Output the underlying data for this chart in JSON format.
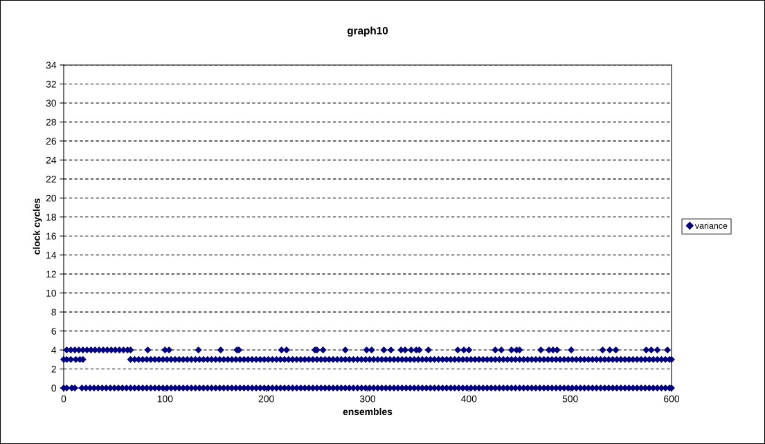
{
  "chart_data": {
    "type": "scatter",
    "title": "graph10",
    "xlabel": "ensembles",
    "ylabel": "clock cycles",
    "xlim": [
      0,
      600
    ],
    "xticks": [
      0,
      100,
      200,
      300,
      400,
      500,
      600
    ],
    "ylim": [
      0,
      34
    ],
    "yticks": [
      0,
      2,
      4,
      6,
      8,
      10,
      12,
      14,
      16,
      18,
      20,
      22,
      24,
      26,
      28,
      30,
      32,
      34
    ],
    "grid": "y",
    "legend": "right",
    "marker": "diamond",
    "series": [
      {
        "name": "variance",
        "color": "#000080",
        "x": [
          0,
          3,
          8,
          11,
          18,
          22,
          26,
          30,
          34,
          38,
          42,
          46,
          50,
          54,
          58,
          62,
          66,
          70,
          74,
          78,
          82,
          86,
          90,
          94,
          98,
          102,
          106,
          110,
          114,
          118,
          122,
          126,
          130,
          134,
          138,
          142,
          146,
          150,
          154,
          158,
          162,
          166,
          170,
          174,
          178,
          182,
          186,
          190,
          194,
          198,
          202,
          206,
          210,
          214,
          218,
          222,
          226,
          230,
          234,
          238,
          242,
          246,
          250,
          254,
          258,
          262,
          266,
          270,
          274,
          278,
          282,
          286,
          290,
          294,
          298,
          302,
          306,
          310,
          314,
          318,
          322,
          326,
          330,
          334,
          338,
          342,
          346,
          350,
          354,
          358,
          362,
          366,
          370,
          374,
          378,
          382,
          386,
          390,
          394,
          398,
          402,
          406,
          410,
          414,
          418,
          422,
          426,
          430,
          434,
          438,
          442,
          446,
          450,
          454,
          458,
          462,
          466,
          470,
          474,
          478,
          482,
          486,
          490,
          494,
          498,
          502,
          506,
          510,
          514,
          518,
          522,
          526,
          530,
          534,
          538,
          542,
          546,
          550,
          554,
          558,
          562,
          566,
          570,
          574,
          578,
          582,
          586,
          590,
          594,
          598,
          600,
          0,
          3,
          7,
          12,
          16,
          19,
          66,
          70,
          74,
          78,
          82,
          86,
          90,
          94,
          98,
          102,
          106,
          110,
          114,
          118,
          122,
          126,
          130,
          134,
          138,
          142,
          146,
          150,
          154,
          158,
          162,
          166,
          170,
          174,
          178,
          182,
          186,
          190,
          194,
          198,
          202,
          206,
          210,
          214,
          218,
          222,
          226,
          230,
          234,
          238,
          242,
          246,
          250,
          254,
          258,
          262,
          266,
          270,
          274,
          278,
          282,
          286,
          290,
          294,
          298,
          302,
          306,
          310,
          314,
          318,
          322,
          326,
          330,
          334,
          338,
          342,
          346,
          350,
          354,
          358,
          362,
          366,
          370,
          374,
          378,
          382,
          386,
          390,
          394,
          398,
          402,
          406,
          410,
          414,
          418,
          422,
          426,
          430,
          434,
          438,
          442,
          446,
          450,
          454,
          458,
          462,
          466,
          470,
          474,
          478,
          482,
          486,
          490,
          494,
          498,
          502,
          506,
          510,
          514,
          518,
          522,
          526,
          530,
          534,
          538,
          542,
          546,
          550,
          554,
          558,
          562,
          566,
          570,
          574,
          578,
          582,
          586,
          590,
          594,
          598,
          600,
          3,
          7,
          11,
          15,
          19,
          23,
          27,
          31,
          35,
          39,
          43,
          47,
          51,
          55,
          59,
          63,
          66,
          83,
          100,
          104,
          133,
          155,
          171,
          173,
          215,
          220,
          248,
          250,
          256,
          278,
          299,
          304,
          316,
          323,
          333,
          337,
          343,
          348,
          351,
          360,
          389,
          395,
          400,
          426,
          432,
          442,
          447,
          450,
          471,
          479,
          483,
          487,
          501,
          532,
          539,
          545,
          575,
          580,
          586,
          596
        ],
        "values": [
          0,
          0,
          0,
          0,
          0,
          0,
          0,
          0,
          0,
          0,
          0,
          0,
          0,
          0,
          0,
          0,
          0,
          0,
          0,
          0,
          0,
          0,
          0,
          0,
          0,
          0,
          0,
          0,
          0,
          0,
          0,
          0,
          0,
          0,
          0,
          0,
          0,
          0,
          0,
          0,
          0,
          0,
          0,
          0,
          0,
          0,
          0,
          0,
          0,
          0,
          0,
          0,
          0,
          0,
          0,
          0,
          0,
          0,
          0,
          0,
          0,
          0,
          0,
          0,
          0,
          0,
          0,
          0,
          0,
          0,
          0,
          0,
          0,
          0,
          0,
          0,
          0,
          0,
          0,
          0,
          0,
          0,
          0,
          0,
          0,
          0,
          0,
          0,
          0,
          0,
          0,
          0,
          0,
          0,
          0,
          0,
          0,
          0,
          0,
          0,
          0,
          0,
          0,
          0,
          0,
          0,
          0,
          0,
          0,
          0,
          0,
          0,
          0,
          0,
          0,
          0,
          0,
          0,
          0,
          0,
          0,
          0,
          0,
          0,
          0,
          0,
          0,
          0,
          0,
          0,
          0,
          0,
          0,
          0,
          0,
          0,
          0,
          0,
          0,
          0,
          0,
          0,
          0,
          0,
          0,
          0,
          0,
          0,
          0,
          0,
          0,
          3,
          3,
          3,
          3,
          3,
          3,
          3,
          3,
          3,
          3,
          3,
          3,
          3,
          3,
          3,
          3,
          3,
          3,
          3,
          3,
          3,
          3,
          3,
          3,
          3,
          3,
          3,
          3,
          3,
          3,
          3,
          3,
          3,
          3,
          3,
          3,
          3,
          3,
          3,
          3,
          3,
          3,
          3,
          3,
          3,
          3,
          3,
          3,
          3,
          3,
          3,
          3,
          3,
          3,
          3,
          3,
          3,
          3,
          3,
          3,
          3,
          3,
          3,
          3,
          3,
          3,
          3,
          3,
          3,
          3,
          3,
          3,
          3,
          3,
          3,
          3,
          3,
          3,
          3,
          3,
          3,
          3,
          3,
          3,
          3,
          3,
          3,
          3,
          3,
          3,
          3,
          3,
          3,
          3,
          3,
          3,
          3,
          3,
          3,
          3,
          3,
          3,
          3,
          3,
          3,
          3,
          3,
          3,
          3,
          3,
          3,
          3,
          3,
          3,
          3,
          3,
          3,
          3,
          3,
          3,
          3,
          3,
          3,
          3,
          3,
          3,
          3,
          3,
          3,
          3,
          3,
          3,
          3,
          3,
          3,
          3,
          3,
          3,
          3,
          3,
          3,
          4,
          4,
          4,
          4,
          4,
          4,
          4,
          4,
          4,
          4,
          4,
          4,
          4,
          4,
          4,
          4,
          4,
          4,
          4,
          4,
          4,
          4,
          4,
          4,
          4,
          4,
          4,
          4,
          4,
          4,
          4,
          4,
          4,
          4,
          4,
          4,
          4,
          4,
          4,
          4,
          4,
          4,
          4,
          4,
          4,
          4,
          4,
          4,
          4,
          4,
          4,
          4,
          4,
          4,
          4,
          4,
          4,
          4,
          4,
          4
        ]
      }
    ]
  }
}
